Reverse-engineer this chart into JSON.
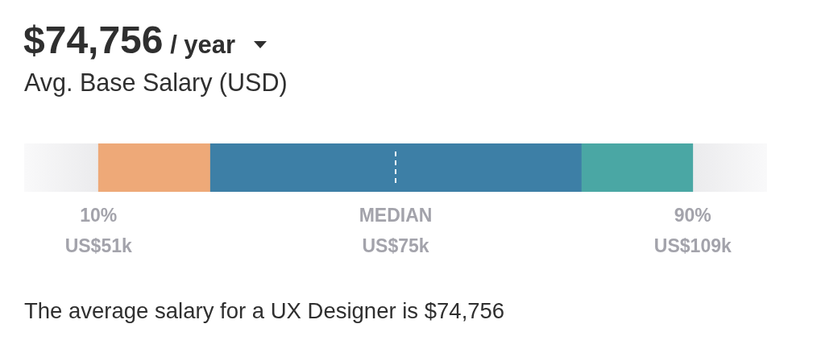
{
  "chart_data": {
    "type": "bar",
    "orientation": "horizontal",
    "title": "$74,756 / year",
    "subtitle": "Avg. Base Salary (USD)",
    "categories": [
      null
    ],
    "series": [
      {
        "color": "#eea978",
        "base": [
          10
        ],
        "values": [
          15
        ]
      },
      {
        "color": "#3d7fa6",
        "base": [
          25
        ],
        "values": [
          50
        ]
      },
      {
        "color": "#4aa7a4",
        "base": [
          75
        ],
        "values": [
          15
        ]
      }
    ],
    "xlim": [
      0,
      100
    ],
    "xticks": [
      {
        "value": 10,
        "label": "10%"
      },
      {
        "value": 50,
        "label": "MEDIAN"
      },
      {
        "value": 90,
        "label": "90%"
      }
    ],
    "ref_lines": [
      {
        "axis": "x",
        "value": 50,
        "color": "#ffffff",
        "line_style": "dashed"
      }
    ],
    "bands": [
      {
        "axis": "x",
        "from": 0,
        "to": 100,
        "color": "#ebebed"
      }
    ],
    "annotations": [
      "US$51k",
      "US$75k",
      "US$109k",
      "The average salary for a UX Designer is $74,756"
    ],
    "tick_labels": "x",
    "legend": false
  }
}
